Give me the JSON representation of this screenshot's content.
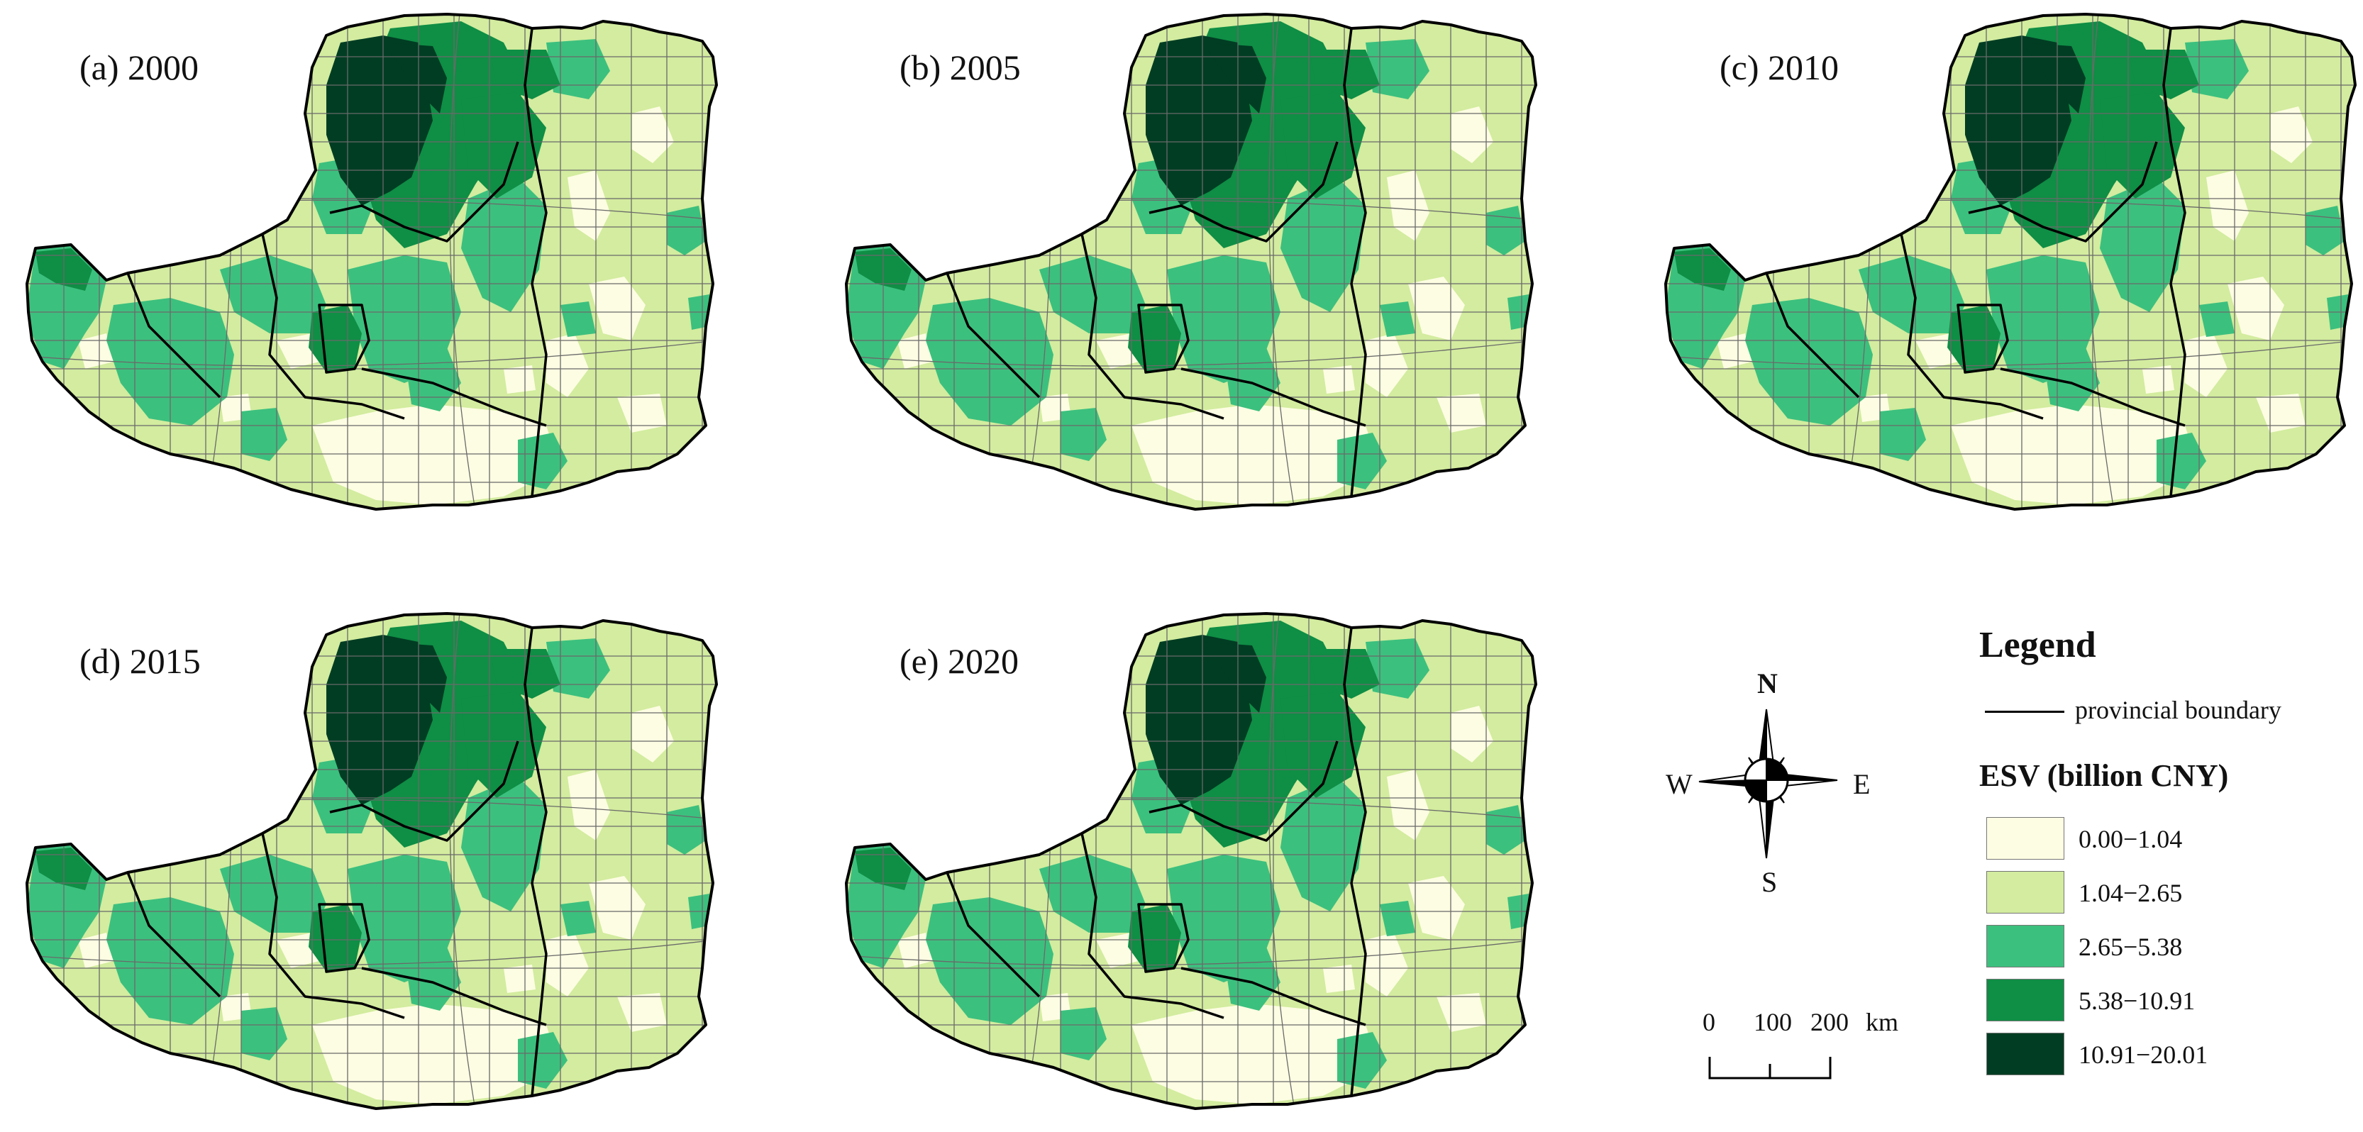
{
  "panels": [
    {
      "label": "(a) 2000"
    },
    {
      "label": "(b) 2005"
    },
    {
      "label": "(c) 2010"
    },
    {
      "label": "(d) 2015"
    },
    {
      "label": "(e) 2020"
    }
  ],
  "legend": {
    "title": "Legend",
    "boundary_label": "provincial boundary",
    "esv_title": "ESV (billion CNY)",
    "classes": [
      {
        "range": "0.00−1.04",
        "color": "#fdfde3"
      },
      {
        "range": "1.04−2.65",
        "color": "#d3ec9f"
      },
      {
        "range": "2.65−5.38",
        "color": "#3cc07e"
      },
      {
        "range": "5.38−10.91",
        "color": "#0f8e45"
      },
      {
        "range": "10.91−20.01",
        "color": "#003d23"
      }
    ]
  },
  "compass": {
    "north": "N",
    "south": "S",
    "east": "E",
    "west": "W"
  },
  "scale_bar": {
    "ticks": [
      "0",
      "100",
      "200"
    ],
    "unit": "km"
  }
}
